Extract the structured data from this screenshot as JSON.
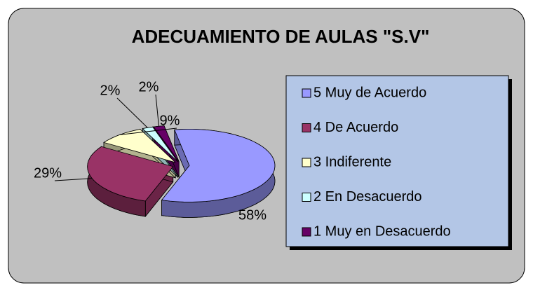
{
  "chart_data": {
    "type": "pie",
    "title": "ADECUAMIENTO DE AULAS \"S.V\"",
    "categories": [
      "5 Muy de Acuerdo",
      "4 De Acuerdo",
      "3 Indiferente",
      "2 En Desacuerdo",
      "1 Muy en Desacuerdo"
    ],
    "values": [
      58,
      29,
      9,
      2,
      2
    ],
    "value_labels": [
      "58%",
      "29%",
      "9%",
      "2%",
      "2%"
    ],
    "colors": [
      "#9999ff",
      "#993366",
      "#ffffcc",
      "#ccffff",
      "#660066"
    ],
    "legend": "right"
  }
}
